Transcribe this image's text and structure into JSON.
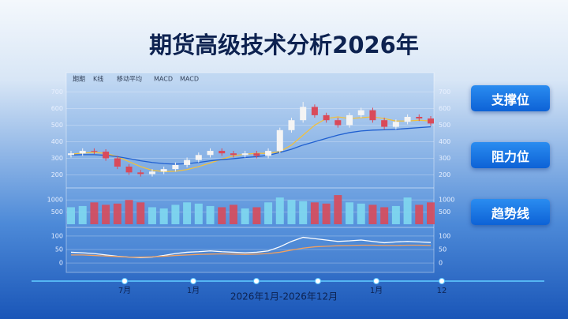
{
  "title": "期货高级技术分析2026年",
  "toolbar": [
    "期期",
    "K线",
    "移动平均",
    "MACD",
    "MACD"
  ],
  "buttons": [
    "支撑位",
    "阻力位",
    "趋势线"
  ],
  "timeline": {
    "labels": [
      "7月",
      "1月",
      "1月",
      "12"
    ],
    "range": "2026年1月-2026年12月"
  },
  "chart_data": [
    {
      "type": "candlestick",
      "ylim": [
        150,
        750
      ],
      "yticks": [
        200,
        300,
        400,
        500,
        600,
        700
      ],
      "grid": true,
      "open": [
        320,
        330,
        345,
        340,
        300,
        250,
        215,
        205,
        220,
        235,
        260,
        290,
        320,
        345,
        330,
        320,
        330,
        315,
        345,
        470,
        530,
        610,
        560,
        530,
        500,
        560,
        590,
        530,
        490,
        520,
        550,
        540
      ],
      "close": [
        330,
        345,
        340,
        300,
        250,
        215,
        205,
        220,
        235,
        260,
        290,
        320,
        345,
        330,
        320,
        330,
        315,
        345,
        470,
        530,
        610,
        560,
        530,
        500,
        560,
        590,
        530,
        490,
        520,
        550,
        540,
        510
      ],
      "high": [
        345,
        360,
        360,
        355,
        315,
        265,
        230,
        235,
        250,
        275,
        305,
        335,
        360,
        360,
        345,
        345,
        345,
        360,
        485,
        545,
        640,
        625,
        575,
        545,
        575,
        605,
        605,
        545,
        535,
        565,
        565,
        555
      ],
      "low": [
        305,
        315,
        325,
        285,
        235,
        200,
        190,
        190,
        205,
        220,
        245,
        275,
        305,
        315,
        305,
        305,
        300,
        300,
        330,
        455,
        515,
        545,
        515,
        485,
        485,
        545,
        515,
        475,
        475,
        505,
        525,
        495
      ],
      "up_color": "#f4f4f4",
      "down_color": "#d94a5a",
      "series": [
        {
          "color": "#f0c040",
          "values": [
            325,
            332,
            335,
            330,
            310,
            280,
            250,
            228,
            220,
            222,
            232,
            250,
            272,
            295,
            315,
            325,
            330,
            330,
            340,
            380,
            440,
            500,
            540,
            550,
            540,
            545,
            550,
            540,
            525,
            525,
            530,
            525
          ]
        },
        {
          "color": "#1f5fd0",
          "values": [
            320,
            322,
            322,
            318,
            310,
            298,
            285,
            275,
            268,
            265,
            268,
            275,
            285,
            292,
            298,
            305,
            310,
            318,
            335,
            355,
            380,
            400,
            420,
            440,
            455,
            465,
            470,
            472,
            475,
            480,
            485,
            490
          ]
        }
      ]
    },
    {
      "type": "bar",
      "ylim": [
        0,
        1300
      ],
      "yticks": [
        500,
        1000
      ],
      "grid": true,
      "up_color": "#7fd8f0",
      "down_color": "#d94a5a",
      "values": [
        700,
        750,
        900,
        800,
        850,
        1000,
        900,
        700,
        650,
        800,
        900,
        850,
        750,
        700,
        800,
        650,
        700,
        900,
        1100,
        1000,
        950,
        900,
        850,
        1200,
        900,
        850,
        800,
        700,
        750,
        1100,
        800,
        900
      ]
    },
    {
      "type": "line",
      "ylim": [
        -20,
        120
      ],
      "yticks": [
        0,
        50,
        100
      ],
      "grid": true,
      "series": [
        {
          "color": "#ffffff",
          "values": [
            40,
            38,
            35,
            30,
            25,
            22,
            20,
            22,
            28,
            35,
            40,
            42,
            45,
            42,
            40,
            38,
            40,
            45,
            60,
            80,
            95,
            90,
            85,
            80,
            82,
            85,
            80,
            75,
            78,
            80,
            78,
            76
          ]
        },
        {
          "color": "#f0a060",
          "values": [
            30,
            30,
            28,
            26,
            24,
            22,
            22,
            23,
            25,
            28,
            30,
            32,
            33,
            34,
            33,
            32,
            33,
            35,
            40,
            48,
            55,
            60,
            62,
            64,
            65,
            66,
            66,
            65,
            65,
            66,
            66,
            65
          ]
        }
      ]
    }
  ]
}
